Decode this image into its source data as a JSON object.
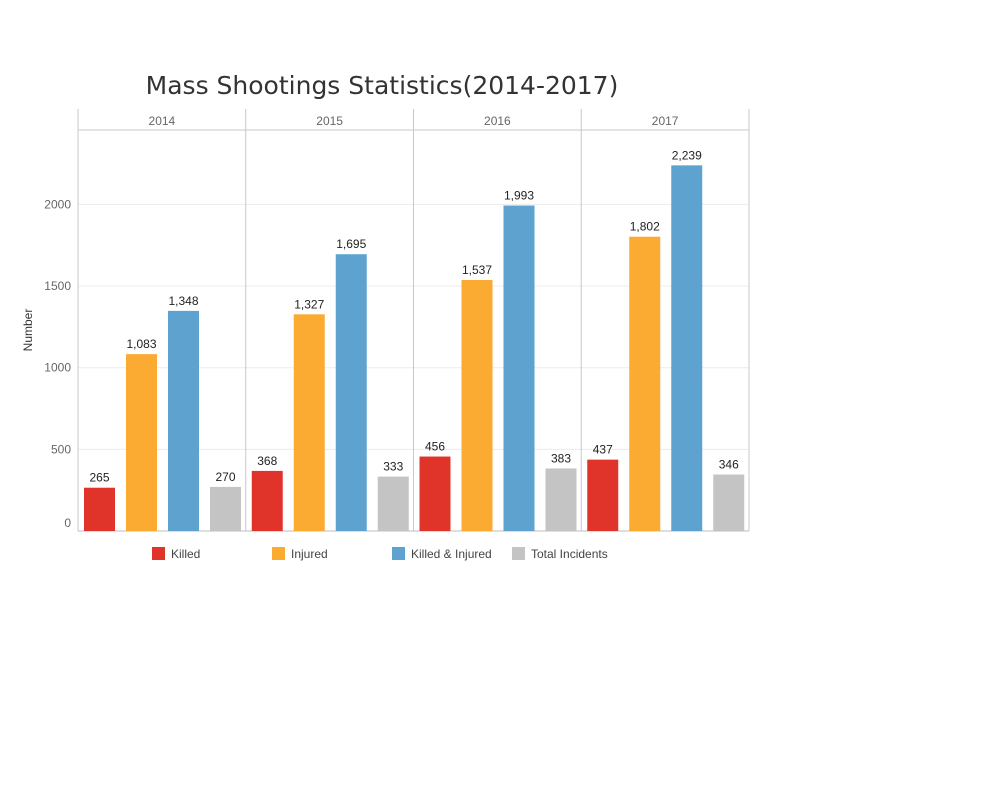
{
  "chart_data": {
    "type": "bar",
    "title": "Mass Shootings Statistics(2014-2017)",
    "ylabel": "Number",
    "xlabel": "",
    "ylim": [
      0,
      2400
    ],
    "yticks": [
      0,
      500,
      1000,
      1500,
      2000
    ],
    "grid": true,
    "legend_position": "bottom",
    "categories": [
      "2014",
      "2015",
      "2016",
      "2017"
    ],
    "series": [
      {
        "name": "Killed",
        "color": "#e0342a",
        "values": [
          265,
          368,
          456,
          437
        ],
        "labels": [
          "265",
          "368",
          "456",
          "437"
        ]
      },
      {
        "name": "Injured",
        "color": "#fbaa32",
        "values": [
          1083,
          1327,
          1537,
          1802
        ],
        "labels": [
          "1,083",
          "1,327",
          "1,537",
          "1,802"
        ]
      },
      {
        "name": "Killed & Injured",
        "color": "#5ea3cf",
        "values": [
          1348,
          1695,
          1993,
          2239
        ],
        "labels": [
          "1,348",
          "1,695",
          "1,993",
          "2,239"
        ]
      },
      {
        "name": "Total Incidents",
        "color": "#c4c4c4",
        "values": [
          270,
          333,
          383,
          346
        ],
        "labels": [
          "270",
          "333",
          "383",
          "346"
        ]
      }
    ]
  }
}
